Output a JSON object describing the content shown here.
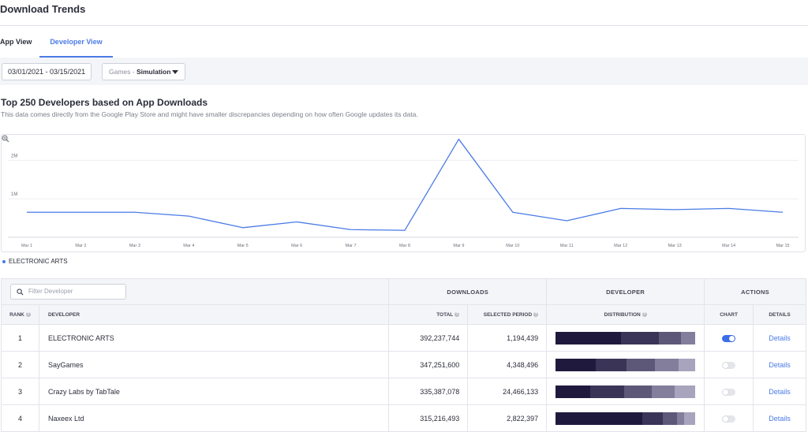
{
  "header": {
    "title": "Download Trends"
  },
  "tabs": [
    {
      "label": "App View",
      "active": false
    },
    {
      "label": "Developer View",
      "active": true
    }
  ],
  "filters": {
    "date_range": "03/01/2021 - 03/15/2021",
    "category_prefix": "Games",
    "category_separator": " - ",
    "category_value": "Simulation"
  },
  "section": {
    "title": "Top 250 Developers based on App Downloads",
    "description": "This data comes directly from the Google Play Store and might have smaller discrepancies depending on how often Google updates its data."
  },
  "chart_data": {
    "type": "line",
    "x": [
      "Mar 1",
      "Mar 2",
      "Mar 3",
      "Mar 4",
      "Mar 5",
      "Mar 6",
      "Mar 7",
      "Mar 8",
      "Mar 9",
      "Mar 10",
      "Mar 11",
      "Mar 12",
      "Mar 13",
      "Mar 14",
      "Mar 15"
    ],
    "y_ticks": [
      "1M",
      "2M"
    ],
    "ylim": [
      0,
      2500000
    ],
    "series": [
      {
        "name": "ELECTRONIC ARTS",
        "color": "#4a7be6",
        "values": [
          650000,
          650000,
          650000,
          550000,
          250000,
          400000,
          200000,
          180000,
          2550000,
          650000,
          430000,
          750000,
          720000,
          750000,
          650000
        ]
      }
    ],
    "grid": true,
    "legend_position": "bottom-left"
  },
  "table": {
    "filter_placeholder": "Filter Developer",
    "group_headers": {
      "downloads": "DOWNLOADS",
      "developer": "DEVELOPER",
      "actions": "ACTIONS"
    },
    "columns": {
      "rank": "RANK",
      "developer": "DEVELOPER",
      "total": "TOTAL",
      "selected_period": "SELECTED PERIOD",
      "distribution": "DISTRIBUTION",
      "chart": "CHART",
      "details": "DETAILS"
    },
    "distribution_colors": [
      "#1f1a3d",
      "#3a3557",
      "#5d5878",
      "#837e9c",
      "#a8a4bd"
    ],
    "rows": [
      {
        "rank": "1",
        "developer": "ELECTRONIC ARTS",
        "total": "392,237,744",
        "selected_period": "1,194,439",
        "distribution": [
          0.47,
          0.27,
          0.16,
          0.1,
          0
        ],
        "chart_on": true,
        "details": "Details"
      },
      {
        "rank": "2",
        "developer": "SayGames",
        "total": "347,251,600",
        "selected_period": "4,348,496",
        "distribution": [
          0.29,
          0.22,
          0.2,
          0.17,
          0.12
        ],
        "chart_on": false,
        "details": "Details"
      },
      {
        "rank": "3",
        "developer": "Crazy Labs by TabTale",
        "total": "335,387,078",
        "selected_period": "24,466,133",
        "distribution": [
          0.25,
          0.24,
          0.2,
          0.16,
          0.15
        ],
        "chart_on": false,
        "details": "Details"
      },
      {
        "rank": "4",
        "developer": "Naxeex Ltd",
        "total": "315,216,493",
        "selected_period": "2,822,397",
        "distribution": [
          0.62,
          0.15,
          0.1,
          0.05,
          0.08
        ],
        "chart_on": false,
        "details": "Details"
      }
    ]
  }
}
